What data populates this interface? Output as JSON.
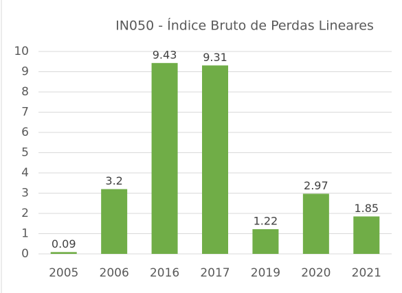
{
  "chart_data": {
    "type": "bar",
    "title": "IN050 - Índice Bruto de Perdas Lineares",
    "categories": [
      "2005",
      "2006",
      "2016",
      "2017",
      "2019",
      "2020",
      "2021"
    ],
    "values": [
      0.09,
      3.2,
      9.43,
      9.31,
      1.22,
      2.97,
      1.85
    ],
    "color": "#70ad47",
    "ylim": [
      0,
      10
    ],
    "yticks": [
      0,
      1,
      2,
      3,
      4,
      5,
      6,
      7,
      8,
      9,
      10
    ],
    "grid": true
  }
}
